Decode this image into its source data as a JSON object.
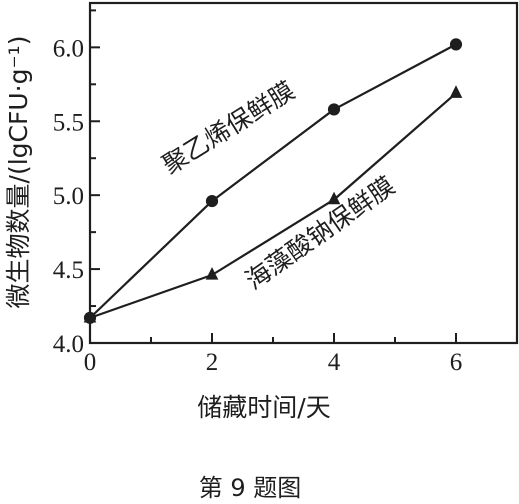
{
  "chart_data": {
    "type": "line",
    "x": [
      0,
      2,
      4,
      6
    ],
    "xlabel": "储藏时间/天",
    "ylabel": "微生物数量/(lgCFU·g⁻¹)",
    "xlim": [
      0,
      7
    ],
    "ylim": [
      4.0,
      6.3
    ],
    "xticks": [
      "0",
      "2",
      "4",
      "6"
    ],
    "yticks": [
      "4.0",
      "4.5",
      "5.0",
      "5.5",
      "6.0"
    ],
    "series": [
      {
        "name": "聚乙烯保鲜膜",
        "marker": "circle",
        "values": [
          4.17,
          4.96,
          5.58,
          6.02
        ]
      },
      {
        "name": "海藻酸钠保鲜膜",
        "marker": "triangle",
        "values": [
          4.17,
          4.46,
          4.97,
          5.69
        ]
      }
    ],
    "grid": false,
    "colors": {
      "ink": "#1e1e1e",
      "background": "#ffffff"
    }
  },
  "caption": "第 9 题图"
}
